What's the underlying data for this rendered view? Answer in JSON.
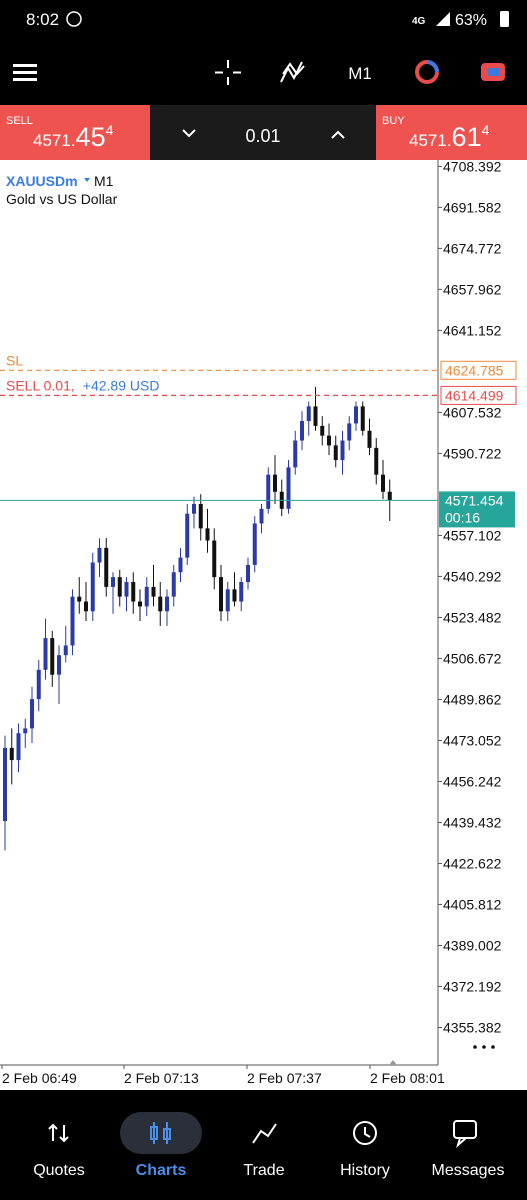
{
  "status_bar": {
    "time": "8:02",
    "battery": "63%"
  },
  "toolbar": {
    "timeframe": "M1"
  },
  "trade_panel": {
    "sell": {
      "label": "SELL",
      "price_head": "4571.",
      "price_big": "45",
      "price_sup": "4"
    },
    "lot": "0.01",
    "buy": {
      "label": "BUY",
      "price_head": "4571.",
      "price_big": "61",
      "price_sup": "4"
    }
  },
  "chart": {
    "symbol": "XAUUSDm",
    "timeframe": "M1",
    "description": "Gold vs US Dollar",
    "ylim": [
      4340,
      4711
    ],
    "yticks": [
      4708.392,
      4691.582,
      4674.772,
      4657.962,
      4641.152,
      4607.532,
      4590.722,
      4557.102,
      4540.292,
      4523.482,
      4506.672,
      4489.862,
      4473.052,
      4456.242,
      4439.432,
      4422.622,
      4405.812,
      4389.002,
      4372.192,
      4355.382
    ],
    "xlabels": [
      "2 Feb 06:49",
      "2 Feb 07:13",
      "2 Feb 07:37",
      "2 Feb 08:01"
    ],
    "bull_color": "#2a3aa8",
    "bear_color": "#111111",
    "candles": [
      [
        4440,
        4475,
        4428,
        4470
      ],
      [
        4470,
        4478,
        4455,
        4465
      ],
      [
        4465,
        4480,
        4460,
        4476
      ],
      [
        4476,
        4482,
        4470,
        4478
      ],
      [
        4478,
        4495,
        4472,
        4490
      ],
      [
        4490,
        4506,
        4485,
        4502
      ],
      [
        4502,
        4523,
        4498,
        4515
      ],
      [
        4515,
        4518,
        4495,
        4500
      ],
      [
        4500,
        4512,
        4488,
        4508
      ],
      [
        4508,
        4520,
        4505,
        4512
      ],
      [
        4512,
        4535,
        4508,
        4532
      ],
      [
        4532,
        4540,
        4525,
        4530
      ],
      [
        4530,
        4538,
        4522,
        4526
      ],
      [
        4526,
        4550,
        4522,
        4546
      ],
      [
        4546,
        4556,
        4540,
        4552
      ],
      [
        4552,
        4556,
        4532,
        4536
      ],
      [
        4536,
        4542,
        4525,
        4540
      ],
      [
        4540,
        4543,
        4528,
        4532
      ],
      [
        4532,
        4540,
        4526,
        4538
      ],
      [
        4538,
        4542,
        4525,
        4530
      ],
      [
        4530,
        4535,
        4522,
        4528
      ],
      [
        4528,
        4540,
        4524,
        4536
      ],
      [
        4536,
        4545,
        4528,
        4532
      ],
      [
        4532,
        4538,
        4520,
        4526
      ],
      [
        4526,
        4535,
        4520,
        4532
      ],
      [
        4532,
        4545,
        4528,
        4542
      ],
      [
        4542,
        4552,
        4538,
        4548
      ],
      [
        4548,
        4570,
        4545,
        4566
      ],
      [
        4566,
        4573,
        4560,
        4570
      ],
      [
        4570,
        4574,
        4555,
        4560
      ],
      [
        4560,
        4568,
        4550,
        4555
      ],
      [
        4555,
        4560,
        4535,
        4540
      ],
      [
        4540,
        4545,
        4522,
        4526
      ],
      [
        4526,
        4538,
        4522,
        4535
      ],
      [
        4535,
        4542,
        4528,
        4530
      ],
      [
        4530,
        4540,
        4526,
        4538
      ],
      [
        4538,
        4548,
        4535,
        4545
      ],
      [
        4545,
        4565,
        4542,
        4562
      ],
      [
        4562,
        4570,
        4558,
        4568
      ],
      [
        4568,
        4585,
        4566,
        4582
      ],
      [
        4582,
        4590,
        4570,
        4575
      ],
      [
        4575,
        4580,
        4565,
        4568
      ],
      [
        4568,
        4588,
        4566,
        4585
      ],
      [
        4585,
        4600,
        4582,
        4596
      ],
      [
        4596,
        4608,
        4592,
        4604
      ],
      [
        4604,
        4612,
        4598,
        4610
      ],
      [
        4610,
        4618,
        4600,
        4602
      ],
      [
        4602,
        4606,
        4594,
        4598
      ],
      [
        4598,
        4603,
        4590,
        4594
      ],
      [
        4594,
        4598,
        4585,
        4588
      ],
      [
        4588,
        4600,
        4582,
        4596
      ],
      [
        4596,
        4606,
        4592,
        4603
      ],
      [
        4603,
        4612,
        4600,
        4610
      ],
      [
        4610,
        4612,
        4598,
        4600
      ],
      [
        4600,
        4605,
        4590,
        4593
      ],
      [
        4593,
        4597,
        4578,
        4582
      ],
      [
        4582,
        4588,
        4572,
        4575
      ],
      [
        4575,
        4580,
        4563,
        4571.454
      ]
    ],
    "sl_line": {
      "label": "SL",
      "value": 4624.785,
      "color": "#f0893a"
    },
    "position_line": {
      "label": "SELL 0.01,",
      "profit": "+42.89 USD",
      "value": 4614.499,
      "color": "#e84b4b"
    },
    "current": {
      "value": 4571.454,
      "timer": "00:16",
      "color": "#26a69a"
    }
  },
  "nav": [
    "Quotes",
    "Charts",
    "Trade",
    "History",
    "Messages"
  ]
}
